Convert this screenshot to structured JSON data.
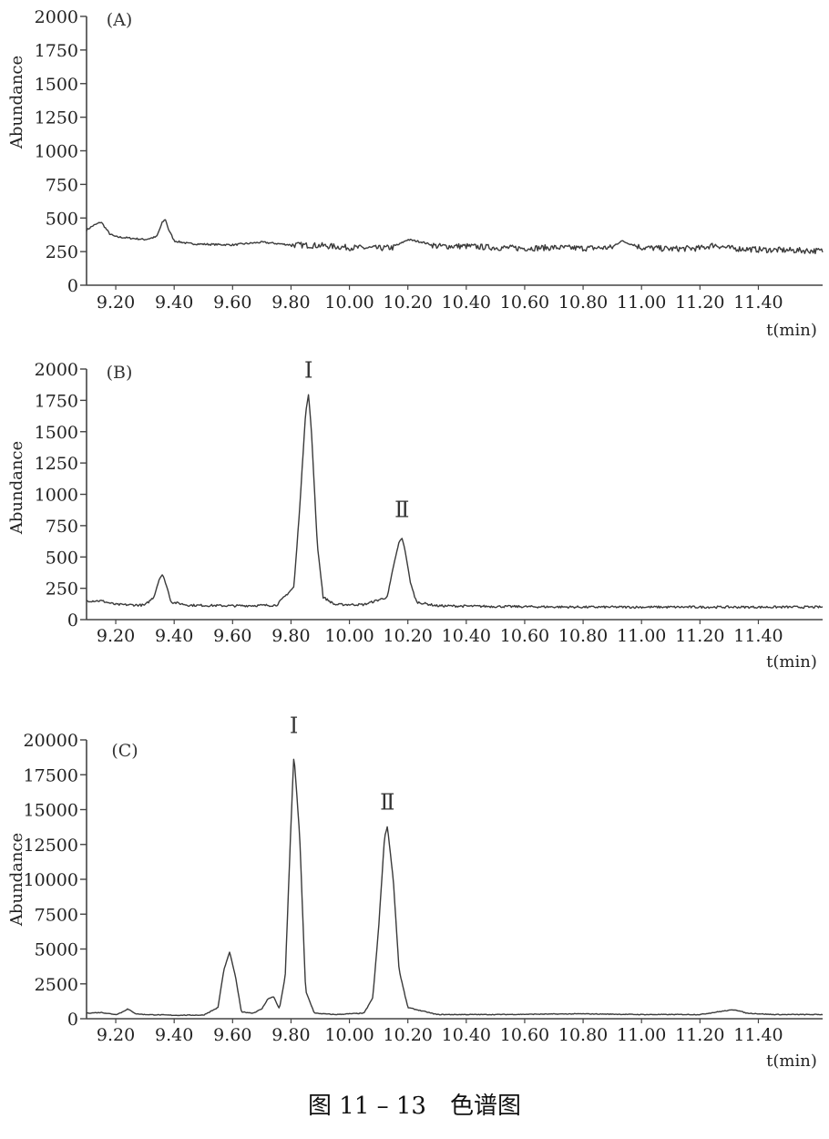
{
  "caption": "图 11 – 13　色谱图",
  "chart_data": [
    {
      "type": "line",
      "panel_label": "(A)",
      "ylabel": "Abundance",
      "xlabel": "t(min)",
      "xlim": [
        9.1,
        11.62
      ],
      "ylim": [
        0,
        2000
      ],
      "yticks": [
        0,
        250,
        500,
        750,
        1000,
        1250,
        1500,
        1750,
        2000
      ],
      "xticks": [
        9.2,
        9.4,
        9.6,
        9.8,
        10.0,
        10.2,
        10.4,
        10.6,
        10.8,
        11.0,
        11.2,
        11.4
      ],
      "xtick_labels": [
        "9.20",
        "9.40",
        "9.60",
        "9.80",
        "10.00",
        "10.20",
        "10.40",
        "10.60",
        "10.80",
        "11.00",
        "11.20",
        "11.40"
      ],
      "series": [
        {
          "x": [
            9.1,
            9.12,
            9.15,
            9.18,
            9.2,
            9.25,
            9.3,
            9.34,
            9.36,
            9.37,
            9.38,
            9.4,
            9.45,
            9.5,
            9.6,
            9.7,
            9.8,
            9.9,
            10.0,
            10.1,
            10.15,
            10.2,
            10.25,
            10.3,
            10.4,
            10.5,
            10.6,
            10.7,
            10.8,
            10.9,
            10.93,
            11.0,
            11.1,
            11.2,
            11.25,
            11.3,
            11.4,
            11.5,
            11.62
          ],
          "values": [
            410,
            440,
            470,
            380,
            360,
            350,
            340,
            360,
            470,
            490,
            420,
            330,
            310,
            305,
            300,
            320,
            300,
            295,
            280,
            275,
            280,
            340,
            320,
            290,
            290,
            280,
            275,
            280,
            275,
            280,
            330,
            280,
            270,
            275,
            300,
            275,
            265,
            260,
            255
          ]
        }
      ],
      "noise": 22
    },
    {
      "type": "line",
      "panel_label": "(B)",
      "ylabel": "Abundance",
      "xlabel": "t(min)",
      "xlim": [
        9.1,
        11.62
      ],
      "ylim": [
        0,
        2000
      ],
      "yticks": [
        0,
        250,
        500,
        750,
        1000,
        1250,
        1500,
        1750,
        2000
      ],
      "xticks": [
        9.2,
        9.4,
        9.6,
        9.8,
        10.0,
        10.2,
        10.4,
        10.6,
        10.8,
        11.0,
        11.2,
        11.4
      ],
      "xtick_labels": [
        "9.20",
        "9.40",
        "9.60",
        "9.80",
        "10.00",
        "10.20",
        "10.40",
        "10.60",
        "10.80",
        "11.00",
        "11.20",
        "11.40"
      ],
      "series": [
        {
          "x": [
            9.1,
            9.15,
            9.2,
            9.3,
            9.33,
            9.35,
            9.36,
            9.37,
            9.39,
            9.45,
            9.6,
            9.75,
            9.81,
            9.83,
            9.85,
            9.86,
            9.87,
            9.89,
            9.91,
            9.95,
            10.05,
            10.13,
            10.15,
            10.17,
            10.18,
            10.19,
            10.21,
            10.23,
            10.3,
            10.5,
            10.8,
            11.0,
            11.2,
            11.4,
            11.62
          ],
          "values": [
            150,
            150,
            120,
            115,
            180,
            330,
            360,
            300,
            140,
            115,
            110,
            115,
            260,
            900,
            1650,
            1800,
            1500,
            600,
            180,
            120,
            120,
            180,
            420,
            620,
            650,
            560,
            280,
            140,
            110,
            105,
            100,
            100,
            100,
            100,
            100
          ]
        }
      ],
      "noise": 9,
      "annotations": [
        {
          "text": "Ⅰ",
          "x": 9.86,
          "y": 1930
        },
        {
          "text": "Ⅱ",
          "x": 10.18,
          "y": 820
        }
      ]
    },
    {
      "type": "line",
      "panel_label": "(C)",
      "ylabel": "Abundance",
      "xlabel": "t(min)",
      "xlim": [
        9.1,
        11.62
      ],
      "ylim": [
        0,
        20000
      ],
      "yticks": [
        0,
        2500,
        5000,
        7500,
        10000,
        12500,
        15000,
        17500,
        20000
      ],
      "xticks": [
        9.2,
        9.4,
        9.6,
        9.8,
        10.0,
        10.2,
        10.4,
        10.6,
        10.8,
        11.0,
        11.2,
        11.4
      ],
      "xtick_labels": [
        "9.20",
        "9.40",
        "9.60",
        "9.80",
        "10.00",
        "10.20",
        "10.40",
        "10.60",
        "10.80",
        "11.00",
        "11.20",
        "11.40"
      ],
      "series": [
        {
          "x": [
            9.1,
            9.15,
            9.2,
            9.22,
            9.24,
            9.27,
            9.3,
            9.4,
            9.5,
            9.55,
            9.57,
            9.59,
            9.61,
            9.63,
            9.67,
            9.7,
            9.72,
            9.74,
            9.76,
            9.78,
            9.8,
            9.81,
            9.83,
            9.85,
            9.88,
            9.95,
            10.05,
            10.08,
            10.1,
            10.12,
            10.13,
            10.15,
            10.17,
            10.2,
            10.3,
            10.5,
            10.8,
            11.0,
            11.2,
            11.28,
            11.32,
            11.36,
            11.45,
            11.62
          ],
          "values": [
            400,
            450,
            300,
            450,
            700,
            350,
            300,
            250,
            260,
            800,
            3500,
            4800,
            3000,
            500,
            400,
            700,
            1400,
            1600,
            700,
            3000,
            14000,
            19000,
            13000,
            2000,
            400,
            300,
            400,
            1500,
            6500,
            13000,
            13800,
            10000,
            3500,
            800,
            300,
            300,
            350,
            300,
            300,
            550,
            650,
            400,
            300,
            300
          ]
        }
      ],
      "noise": 25,
      "annotations": [
        {
          "text": "Ⅰ",
          "x": 9.81,
          "y": 20500
        },
        {
          "text": "Ⅱ",
          "x": 10.13,
          "y": 15000
        }
      ]
    }
  ]
}
